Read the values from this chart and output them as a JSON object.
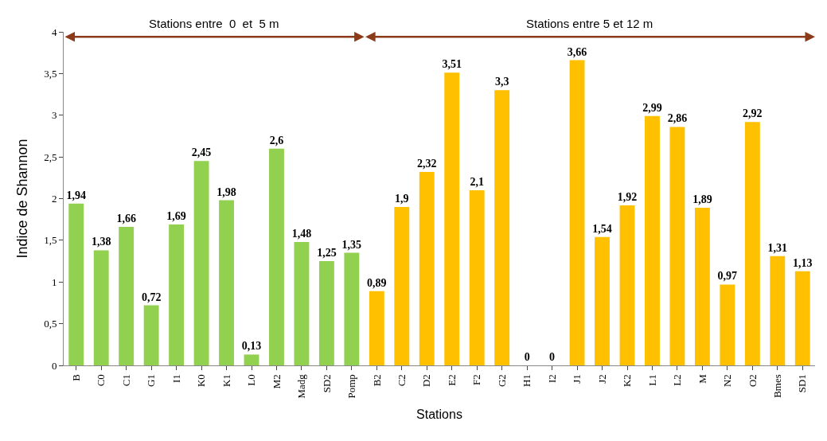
{
  "chart_data": {
    "type": "bar",
    "xlabel": "Stations",
    "ylabel": "Indice de Shannon",
    "categories": [
      "B",
      "C0",
      "C1",
      "G1",
      "I1",
      "K0",
      "K1",
      "L0",
      "M2",
      "Madg",
      "SD2",
      "Pomp",
      "B2",
      "C2",
      "D2",
      "E2",
      "F2",
      "G2",
      "H1",
      "I2",
      "J1",
      "J2",
      "K2",
      "L1",
      "L2",
      "M",
      "N2",
      "O2",
      "Bmes",
      "SD1"
    ],
    "values": [
      1.94,
      1.38,
      1.66,
      0.72,
      1.69,
      2.45,
      1.98,
      0.13,
      2.6,
      1.48,
      1.25,
      1.35,
      0.89,
      1.9,
      2.32,
      3.51,
      2.1,
      3.3,
      0,
      0,
      3.66,
      1.54,
      1.92,
      2.99,
      2.86,
      1.89,
      0.97,
      2.92,
      1.31,
      1.13
    ],
    "value_labels": [
      "1,94",
      "1,38",
      "1,66",
      "0,72",
      "1,69",
      "2,45",
      "1,98",
      "0,13",
      "2,6",
      "1,48",
      "1,25",
      "1,35",
      "0,89",
      "1,9",
      "2,32",
      "3,51",
      "2,1",
      "3,3",
      "0",
      "0",
      "3,66",
      "1,54",
      "1,92",
      "2,99",
      "2,86",
      "1,89",
      "0,97",
      "2,92",
      "1,31",
      "1,13"
    ],
    "colors": [
      "#92d050",
      "#92d050",
      "#92d050",
      "#92d050",
      "#92d050",
      "#92d050",
      "#92d050",
      "#92d050",
      "#92d050",
      "#92d050",
      "#92d050",
      "#92d050",
      "#ffc000",
      "#ffc000",
      "#ffc000",
      "#ffc000",
      "#ffc000",
      "#ffc000",
      "#ffc000",
      "#ffc000",
      "#ffc000",
      "#ffc000",
      "#ffc000",
      "#ffc000",
      "#ffc000",
      "#ffc000",
      "#ffc000",
      "#ffc000",
      "#ffc000",
      "#ffc000"
    ],
    "ylim": [
      0,
      4
    ],
    "yticks": [
      0,
      {
        "value": 0.5,
        "label": "0,5"
      },
      1,
      {
        "value": 1.5,
        "label": "1,5"
      },
      2,
      {
        "value": 2.5,
        "label": "2,5"
      },
      3,
      {
        "value": 3.5,
        "label": "3,5"
      },
      4
    ],
    "legend": false,
    "annotations": [
      "Stations entre  0  et  5 m",
      "Stations entre 5 et 12 m"
    ]
  }
}
